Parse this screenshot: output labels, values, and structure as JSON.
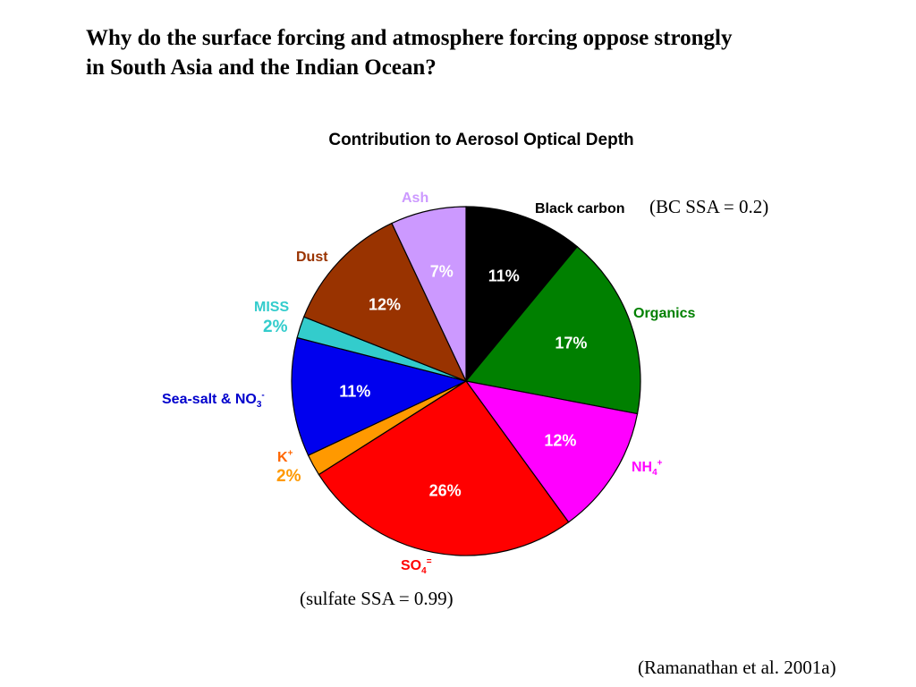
{
  "slide": {
    "title_line1": "Why do the surface forcing and atmosphere forcing oppose strongly",
    "title_line2": "in South Asia and the Indian Ocean?",
    "bc_note": "(BC SSA = 0.2)",
    "sulfate_note": "(sulfate SSA = 0.99)",
    "citation": "(Ramanathan et al. 2001a)"
  },
  "chart_data": {
    "type": "pie",
    "title": "Contribution to Aerosol Optical Depth",
    "start": "12 o'clock",
    "direction": "clockwise",
    "slices": [
      {
        "label": "Black carbon",
        "value": 11,
        "value_label": "11%",
        "color": "#000000",
        "text_color": "#ffffff"
      },
      {
        "label": "Organics",
        "value": 17,
        "value_label": "17%",
        "color": "#008000",
        "text_color": "#ffffff"
      },
      {
        "label": "NH",
        "label_sub": "4",
        "label_sup": "+",
        "value": 12,
        "value_label": "12%",
        "color": "#ff00ff",
        "text_color": "#ffffff"
      },
      {
        "label": "SO",
        "label_sub": "4",
        "label_sup": "=",
        "value": 26,
        "value_label": "26%",
        "color": "#ff0000",
        "text_color": "#ffffff"
      },
      {
        "label": "K",
        "label_sup": "+",
        "value": 2,
        "value_label": "2%",
        "color": "#ff9900",
        "text_color": "#ff9900"
      },
      {
        "label": "Sea-salt & NO",
        "label_sub": "3",
        "label_sup": "-",
        "value": 11,
        "value_label": "11%",
        "color": "#0000ee",
        "text_color": "#ffffff"
      },
      {
        "label": "MISS",
        "value": 2,
        "value_label": "2%",
        "color": "#33cccc",
        "text_color": "#33cccc"
      },
      {
        "label": "Dust",
        "value": 12,
        "value_label": "12%",
        "color": "#993300",
        "text_color": "#ffffff"
      },
      {
        "label": "Ash",
        "value": 7,
        "value_label": "7%",
        "color": "#cc99ff",
        "text_color": "#ffffff"
      }
    ],
    "label_colors": {
      "Black carbon": "#000000",
      "Organics": "#008000",
      "NH4+": "#ff00ff",
      "SO4=": "#ff0000",
      "K+": "#ff6600",
      "Sea-salt & NO3-": "#0000cc",
      "MISS": "#33cccc",
      "Dust": "#993300",
      "Ash": "#cc99ff"
    }
  }
}
